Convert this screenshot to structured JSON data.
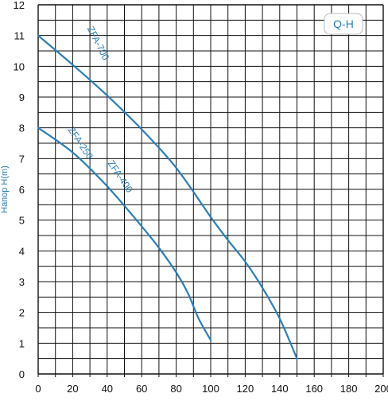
{
  "chart_data": {
    "type": "line",
    "title": "",
    "xlabel": "",
    "ylabel": "Напор H(m)",
    "legend_label": "Q-H",
    "legend_position": "top-right",
    "xlim": [
      0,
      200
    ],
    "ylim": [
      0,
      12
    ],
    "x_ticks": [
      "0",
      "20",
      "40",
      "60",
      "80",
      "100",
      "120",
      "140",
      "160",
      "180",
      "200"
    ],
    "y_ticks": [
      "0",
      "1",
      "2",
      "3",
      "4",
      "5",
      "6",
      "7",
      "8",
      "9",
      "10",
      "11",
      "12"
    ],
    "grid": true,
    "line_color": "#2a7fb8",
    "series": [
      {
        "name": "ZFA-700",
        "points": [
          [
            0,
            11.0
          ],
          [
            20,
            10.05
          ],
          [
            40,
            9.05
          ],
          [
            60,
            7.95
          ],
          [
            80,
            6.7
          ],
          [
            100,
            5.1
          ],
          [
            110,
            4.35
          ],
          [
            120,
            3.65
          ],
          [
            130,
            2.8
          ],
          [
            140,
            1.8
          ],
          [
            150,
            0.5
          ]
        ]
      },
      {
        "name": "ZFA-250",
        "points": [
          [
            0,
            8.0
          ],
          [
            20,
            7.2
          ],
          [
            40,
            6.1
          ],
          [
            60,
            4.8
          ],
          [
            70,
            4.1
          ],
          [
            80,
            3.3
          ],
          [
            87,
            2.6
          ],
          [
            93,
            1.8
          ],
          [
            100,
            1.1
          ]
        ]
      },
      {
        "name": "ZFA-400",
        "points": []
      }
    ]
  }
}
